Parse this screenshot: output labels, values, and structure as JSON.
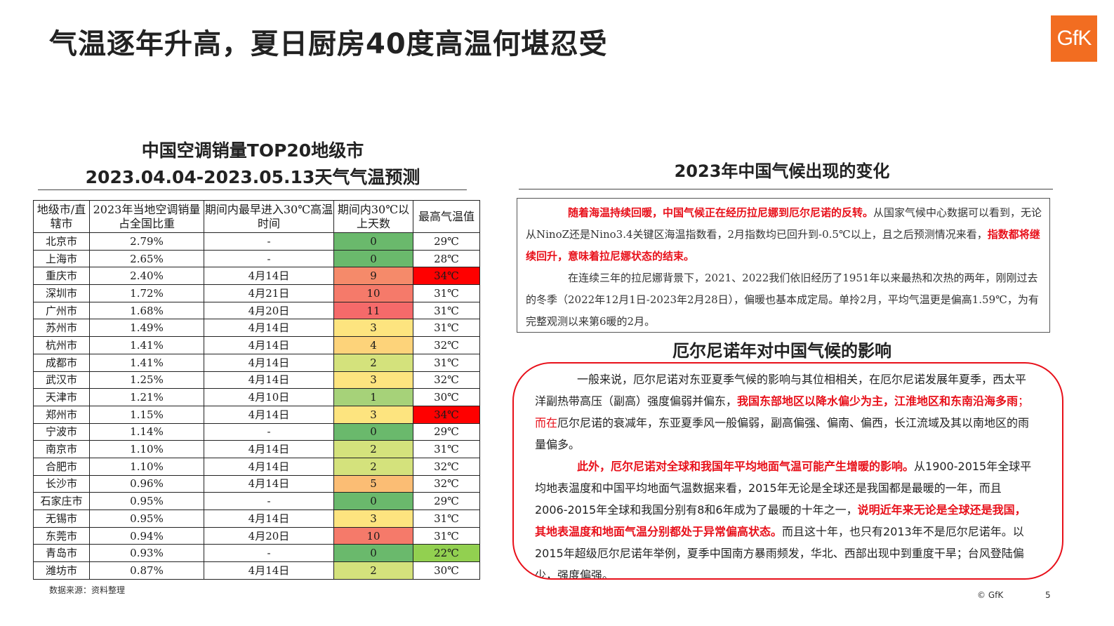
{
  "page_title": "气温逐年升高，夏日厨房40度高温何堪忍受",
  "logo_text": "GfK",
  "left": {
    "title_line1": "中国空调销量TOP20地级市",
    "title_line2": "2023.04.04-2023.05.13天气气温预测",
    "headers": [
      "地级市/直辖市",
      "2023年当地空调销量占全国比重",
      "期间内最早进入30℃高温时间",
      "期间内30℃以上天数",
      "最高气温值"
    ],
    "rows": [
      {
        "city": "北京市",
        "share": "2.79%",
        "first": "-",
        "days": "0",
        "days_color": "#6ab96c",
        "max": "29℃",
        "max_color": "#ffffff"
      },
      {
        "city": "上海市",
        "share": "2.65%",
        "first": "-",
        "days": "0",
        "days_color": "#6ab96c",
        "max": "28℃",
        "max_color": "#ffffff"
      },
      {
        "city": "重庆市",
        "share": "2.40%",
        "first": "4月14日",
        "days": "9",
        "days_color": "#f58a6a",
        "max": "34℃",
        "max_color": "#ff0000"
      },
      {
        "city": "深圳市",
        "share": "1.72%",
        "first": "4月21日",
        "days": "10",
        "days_color": "#f57a6a",
        "max": "31℃",
        "max_color": "#ffffff"
      },
      {
        "city": "广州市",
        "share": "1.68%",
        "first": "4月20日",
        "days": "11",
        "days_color": "#f56a6a",
        "max": "31℃",
        "max_color": "#ffffff"
      },
      {
        "city": "苏州市",
        "share": "1.49%",
        "first": "4月14日",
        "days": "3",
        "days_color": "#fde47f",
        "max": "31℃",
        "max_color": "#ffffff"
      },
      {
        "city": "杭州市",
        "share": "1.41%",
        "first": "4月14日",
        "days": "4",
        "days_color": "#fdd37a",
        "max": "32℃",
        "max_color": "#ffffff"
      },
      {
        "city": "成都市",
        "share": "1.41%",
        "first": "4月14日",
        "days": "2",
        "days_color": "#d4e27c",
        "max": "31℃",
        "max_color": "#ffffff"
      },
      {
        "city": "武汉市",
        "share": "1.25%",
        "first": "4月14日",
        "days": "3",
        "days_color": "#fde47f",
        "max": "32℃",
        "max_color": "#ffffff"
      },
      {
        "city": "天津市",
        "share": "1.21%",
        "first": "4月10日",
        "days": "1",
        "days_color": "#a6d279",
        "max": "30℃",
        "max_color": "#ffffff"
      },
      {
        "city": "郑州市",
        "share": "1.15%",
        "first": "4月14日",
        "days": "3",
        "days_color": "#fde47f",
        "max": "34℃",
        "max_color": "#ff0000"
      },
      {
        "city": "宁波市",
        "share": "1.14%",
        "first": "-",
        "days": "0",
        "days_color": "#6ab96c",
        "max": "29℃",
        "max_color": "#ffffff"
      },
      {
        "city": "南京市",
        "share": "1.10%",
        "first": "4月14日",
        "days": "2",
        "days_color": "#d4e27c",
        "max": "31℃",
        "max_color": "#ffffff"
      },
      {
        "city": "合肥市",
        "share": "1.10%",
        "first": "4月14日",
        "days": "2",
        "days_color": "#d4e27c",
        "max": "32℃",
        "max_color": "#ffffff"
      },
      {
        "city": "长沙市",
        "share": "0.96%",
        "first": "4月14日",
        "days": "5",
        "days_color": "#fbbd74",
        "max": "32℃",
        "max_color": "#ffffff"
      },
      {
        "city": "石家庄市",
        "share": "0.95%",
        "first": "-",
        "days": "0",
        "days_color": "#6ab96c",
        "max": "29℃",
        "max_color": "#ffffff"
      },
      {
        "city": "无锡市",
        "share": "0.95%",
        "first": "4月14日",
        "days": "3",
        "days_color": "#fde47f",
        "max": "31℃",
        "max_color": "#ffffff"
      },
      {
        "city": "东莞市",
        "share": "0.94%",
        "first": "4月20日",
        "days": "10",
        "days_color": "#f57a6a",
        "max": "31℃",
        "max_color": "#ffffff"
      },
      {
        "city": "青岛市",
        "share": "0.93%",
        "first": "-",
        "days": "0",
        "days_color": "#6ab96c",
        "max": "22℃",
        "max_color": "#92d050"
      },
      {
        "city": "潍坊市",
        "share": "0.87%",
        "first": "4月14日",
        "days": "2",
        "days_color": "#d4e27c",
        "max": "30℃",
        "max_color": "#ffffff"
      }
    ],
    "source": "数据来源：资料整理"
  },
  "right": {
    "title": "2023年中国气候出现的变化",
    "box1_p1_red1": "随着海温持续回暖，中国气候正在经历拉尼娜到厄尔尼诺的反转。",
    "box1_p1_text1": "从国家气候中心数据可以看到，无论从NinoZ还是Nino3.4关键区海温指数看，2月指数均已回升到-0.5℃以上，且之后预测情况来看，",
    "box1_p1_red2": "指数都将继续回升，意味着拉尼娜状态的结束。",
    "box1_p2": "在连续三年的拉尼娜背景下，2021、2022我们依旧经历了1951年以来最热和次热的两年，刚刚过去的冬季（2022年12月1日-2023年2月28日），偏暖也基本成定局。单拎2月，平均气温更是偏高1.59℃，为有完整观测以来第6暖的2月。",
    "subtitle": "厄尔尼诺年对中国气候的影响",
    "box2_p1_text1": "一般来说，厄尔尼诺对东亚夏季气候的影响与其位相相关，在厄尔尼诺发展年夏季，西太平洋副热带高压（副高）强度偏弱并偏东，",
    "box2_p1_red1": "我国东部地区以降水偏少为主，江淮地区和东南沿海多雨",
    "box2_p1_red_plain": "；而在",
    "box2_p1_text2": "厄尔尼诺的衰减年，东亚夏季风一般偏弱，副高偏强、偏南、偏西，长江流域及其以南地区的雨量偏多。",
    "box2_p2_red1": "此外，厄尔尼诺对全球和我国年平均地面气温可能产生增暖的影响。",
    "box2_p2_text1": "从1900-2015年全球平均地表温度和中国平均地面气温数据来看，2015年无论是全球还是我国都是最暖的一年，而且2006-2015年全球和我国分别有8和6年成为了最暖的十年之一，",
    "box2_p2_red2": "说明近年来无论是全球还是我国，其地表温度和地面气温分别都处于异常偏高状态。",
    "box2_p2_text2": "而且这十年，也只有2013年不是厄尔尼诺年。以2015年超级厄尔尼诺年举例，夏季中国南方暴雨频发，华北、西部出现中到重度干旱；台风登陆偏少，强度偏强。"
  },
  "footer": {
    "copyright": "© GfK",
    "page_number": "5"
  }
}
